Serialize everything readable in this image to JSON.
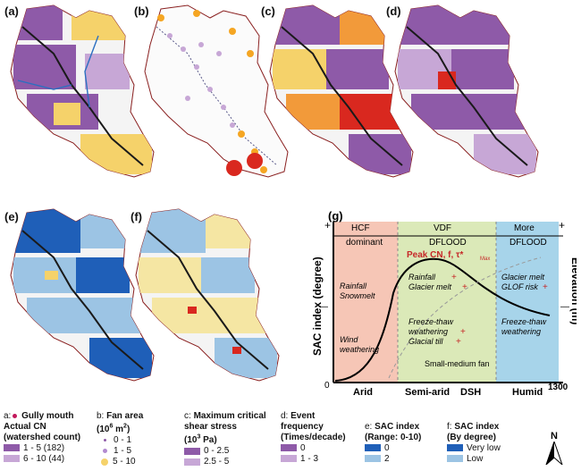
{
  "panels": {
    "a": "(a)",
    "b": "(b)",
    "c": "(c)",
    "d": "(d)",
    "e": "(e)",
    "f": "(f)",
    "g": "(g)"
  },
  "colors": {
    "purple": "#8e5aa8",
    "lightpurple": "#c7a7d6",
    "yellow": "#f5d26a",
    "orange": "#f29a3a",
    "red": "#d9281f",
    "blue": "#1f5fb8",
    "lightblue": "#9cc4e4",
    "pink": "#f6c6b6",
    "green": "#dbe9b8",
    "cyan": "#a7d4ea"
  },
  "chart": {
    "yleft": "SAC index (degree)",
    "yright": "Elevation (m)",
    "plus_left": "+",
    "plus_right": "+",
    "minus_left": "—",
    "minus_right": "—",
    "zero": "0",
    "elev_top": "1300",
    "zones": [
      {
        "top": "HCF",
        "bottom": "dominant"
      },
      {
        "top": "VDF",
        "bottom": "DFLOOD"
      },
      {
        "top": "More",
        "bottom": "DFLOOD"
      }
    ],
    "xcats": [
      "Arid",
      "Semi-arid",
      "DSH",
      "Humid"
    ],
    "peak": "Peak CN, f, τ*",
    "peak_sub": "Max",
    "left_texts": [
      "Rainfall",
      "Snowmelt",
      "Wind",
      "weathering"
    ],
    "mid_texts": [
      "Rainfall",
      "Glacier melt",
      "Freeze-thaw",
      "weathering",
      "Glacial till"
    ],
    "mid_plus": "+",
    "right_texts": [
      "Glacier melt",
      "GLOF risk",
      "Freeze-thaw",
      "weathering"
    ],
    "fan": "Small-medium fan"
  },
  "legend": {
    "a_title": "a:",
    "a_gully": "Gully mouth",
    "a_cn": "Actual CN",
    "a_sub": "(watershed count)",
    "a_items": [
      "1 - 5 (182)",
      "6 - 10 (44)"
    ],
    "b_title": "b:",
    "b_fan": "Fan area",
    "b_unit": "(10",
    "b_unit_exp": "6",
    "b_unit_m": " m",
    "b_unit_m_exp": "2",
    "b_unit_end": ")",
    "b_items": [
      "0 - 1",
      "1 - 5",
      "5 - 10"
    ],
    "c_title": "c:",
    "c_max": "Maximum critical",
    "c_shear": "shear stress",
    "c_unit": "(10",
    "c_unit_exp": "3",
    "c_unit_end": " Pa)",
    "c_items": [
      "0 - 2.5",
      "2.5 - 5"
    ],
    "d_title": "d:",
    "d_event": "Event",
    "d_freq": "frequency",
    "d_sub": "(Times/decade)",
    "d_items": [
      "0",
      "1 - 3"
    ],
    "e_title": "e:",
    "e_sac": "SAC index",
    "e_sub": "(Range: 0-10)",
    "e_items": [
      "0",
      "2"
    ],
    "f_title": "f:",
    "f_sac": "SAC index",
    "f_sub": "(By degree)",
    "f_items": [
      "Very low",
      "Low"
    ],
    "north": "N"
  }
}
